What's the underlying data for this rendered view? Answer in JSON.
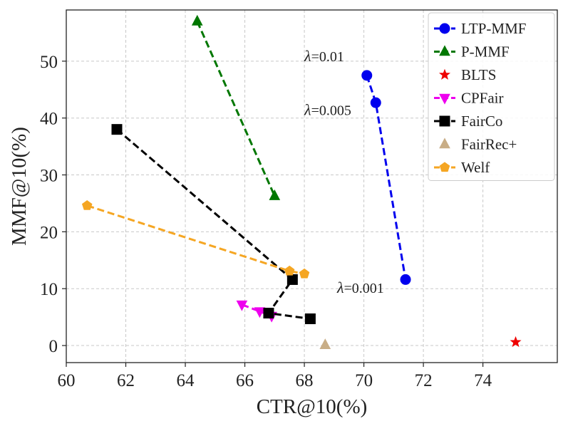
{
  "chart_data": {
    "type": "scatter",
    "title": "",
    "xlabel": "CTR@10(%)",
    "ylabel": "MMF@10(%)",
    "xlim": [
      60,
      76.5
    ],
    "ylim": [
      -3,
      59
    ],
    "xticks": [
      60,
      62,
      64,
      66,
      68,
      70,
      72,
      74
    ],
    "yticks": [
      0,
      10,
      20,
      30,
      40,
      50
    ],
    "grid": true,
    "legend_position": "top-right",
    "series": [
      {
        "name": "LTP-MMF",
        "color": "#0000ee",
        "marker": "circle",
        "line": "dashed",
        "points": [
          [
            70.1,
            47.5
          ],
          [
            70.4,
            42.7
          ],
          [
            71.4,
            11.6
          ]
        ]
      },
      {
        "name": "P-MMF",
        "color": "#007700",
        "marker": "triangle-up",
        "line": "dashed",
        "points": [
          [
            64.4,
            57.0
          ],
          [
            67.0,
            26.3
          ]
        ]
      },
      {
        "name": "BLTS",
        "color": "#ee0000",
        "marker": "star",
        "line": "none",
        "points": [
          [
            75.1,
            0.6
          ]
        ]
      },
      {
        "name": "CPFair",
        "color": "#ee00ee",
        "marker": "triangle-down",
        "line": "dashed",
        "points": [
          [
            65.9,
            7.2
          ],
          [
            66.5,
            6.0
          ],
          [
            66.9,
            5.2
          ]
        ]
      },
      {
        "name": "FairCo",
        "color": "#000000",
        "marker": "square",
        "line": "dashed",
        "points": [
          [
            61.7,
            38.0
          ],
          [
            67.6,
            11.6
          ],
          [
            66.8,
            5.7
          ],
          [
            68.2,
            4.7
          ]
        ]
      },
      {
        "name": "FairRec+",
        "color": "#c8ad86",
        "marker": "triangle-up",
        "line": "none",
        "points": [
          [
            68.7,
            0.1
          ]
        ]
      },
      {
        "name": "Welf",
        "color": "#f5a623",
        "marker": "pentagon",
        "line": "dashed",
        "points": [
          [
            60.7,
            24.6
          ],
          [
            67.5,
            13.1
          ],
          [
            68.0,
            12.6
          ]
        ]
      }
    ],
    "annotations": [
      {
        "symbol": "λ",
        "text": "=0.01",
        "x": 68.0,
        "y": 50.0
      },
      {
        "symbol": "λ",
        "text": "=0.005",
        "x": 68.0,
        "y": 40.5
      },
      {
        "symbol": "λ",
        "text": "=0.001",
        "x": 69.1,
        "y": 9.3
      }
    ]
  }
}
